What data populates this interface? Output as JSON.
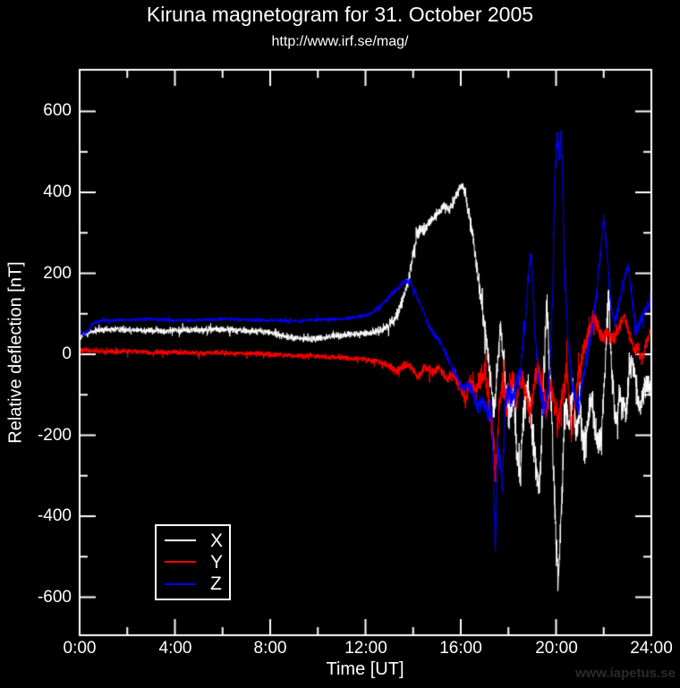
{
  "page": {
    "title": "Kiruna magnetogram for 31. October 2005",
    "subtitle": "http://www.irf.se/mag/",
    "watermark": "www.iapetus.se"
  },
  "chart_data": {
    "type": "line",
    "title": "Kiruna magnetogram for 31. October 2005",
    "subtitle": "http://www.irf.se/mag/",
    "xlabel": "Time [UT]",
    "ylabel": "Relative deflection [nT]",
    "xlim": [
      0,
      24
    ],
    "ylim": [
      -694,
      702
    ],
    "background": "#000000",
    "axis_color": "#ffffff",
    "grid": false,
    "x_ticks_major_hours": [
      0,
      4,
      8,
      12,
      16,
      20,
      24
    ],
    "x_tick_labels": [
      "0:00",
      "4:00",
      "8:00",
      "12:00",
      "16:00",
      "20:00",
      "24:00"
    ],
    "x_ticks_minor_hours": [
      2,
      6,
      10,
      14,
      18,
      22
    ],
    "y_ticks_major": [
      600,
      400,
      200,
      0,
      -200,
      -400,
      -600
    ],
    "y_tick_labels": [
      "600",
      "400",
      "200",
      "0",
      "-200",
      "-400",
      "-600"
    ],
    "y_ticks_minor": [
      500,
      300,
      100,
      -100,
      -300,
      -500
    ],
    "legend": {
      "position": "inside-bottom-left",
      "entries": [
        {
          "label": "X",
          "color": "#ffffff"
        },
        {
          "label": "Y",
          "color": "#ff0000"
        },
        {
          "label": "Z",
          "color": "#0000ff"
        }
      ]
    },
    "series": [
      {
        "name": "X",
        "color": "#ffffff",
        "unit": "nT",
        "keypoints": [
          [
            0,
            38
          ],
          [
            0.2,
            50
          ],
          [
            0.7,
            58
          ],
          [
            1.5,
            62
          ],
          [
            2.5,
            60
          ],
          [
            3.5,
            58
          ],
          [
            4.5,
            60
          ],
          [
            5.5,
            62
          ],
          [
            6.5,
            60
          ],
          [
            7.5,
            57
          ],
          [
            8,
            54
          ],
          [
            8.5,
            46
          ],
          [
            9,
            40
          ],
          [
            9.5,
            38
          ],
          [
            10,
            40
          ],
          [
            10.5,
            44
          ],
          [
            11,
            47
          ],
          [
            11.5,
            49
          ],
          [
            12,
            52
          ],
          [
            12.5,
            56
          ],
          [
            13,
            72
          ],
          [
            13.3,
            95
          ],
          [
            13.6,
            140
          ],
          [
            13.8,
            185
          ],
          [
            14,
            245
          ],
          [
            14.15,
            295
          ],
          [
            14.3,
            310
          ],
          [
            14.5,
            305
          ],
          [
            14.7,
            325
          ],
          [
            14.9,
            340
          ],
          [
            15.1,
            350
          ],
          [
            15.3,
            370
          ],
          [
            15.5,
            355
          ],
          [
            15.7,
            375
          ],
          [
            15.9,
            405
          ],
          [
            16.05,
            420
          ],
          [
            16.2,
            395
          ],
          [
            16.35,
            340
          ],
          [
            16.5,
            290
          ],
          [
            16.7,
            200
          ],
          [
            16.9,
            110
          ],
          [
            17.1,
            30
          ],
          [
            17.25,
            -60
          ],
          [
            17.4,
            -145
          ],
          [
            17.55,
            -30
          ],
          [
            17.65,
            65
          ],
          [
            17.75,
            20
          ],
          [
            17.9,
            -90
          ],
          [
            18.05,
            -160
          ],
          [
            18.2,
            -90
          ],
          [
            18.35,
            -230
          ],
          [
            18.5,
            -280
          ],
          [
            18.65,
            -140
          ],
          [
            18.8,
            -80
          ],
          [
            19,
            -190
          ],
          [
            19.15,
            -280
          ],
          [
            19.3,
            -330
          ],
          [
            19.45,
            -120
          ],
          [
            19.6,
            130
          ],
          [
            19.75,
            -40
          ],
          [
            19.9,
            -300
          ],
          [
            20,
            -460
          ],
          [
            20.1,
            -575
          ],
          [
            20.25,
            -350
          ],
          [
            20.4,
            -120
          ],
          [
            20.55,
            -180
          ],
          [
            20.7,
            -80
          ],
          [
            20.85,
            -200
          ],
          [
            21,
            -120
          ],
          [
            21.15,
            -240
          ],
          [
            21.3,
            -200
          ],
          [
            21.45,
            -100
          ],
          [
            21.6,
            -160
          ],
          [
            21.75,
            -220
          ],
          [
            21.9,
            -215
          ],
          [
            22.05,
            -40
          ],
          [
            22.2,
            150
          ],
          [
            22.35,
            -60
          ],
          [
            22.5,
            -170
          ],
          [
            22.65,
            -110
          ],
          [
            22.8,
            -125
          ],
          [
            22.95,
            -130
          ],
          [
            23.1,
            -30
          ],
          [
            23.2,
            -10
          ],
          [
            23.35,
            -60
          ],
          [
            23.5,
            -140
          ],
          [
            23.65,
            -95
          ],
          [
            23.8,
            -70
          ],
          [
            24,
            -95
          ]
        ],
        "noise_amp": [
          [
            0,
            9
          ],
          [
            8,
            9
          ],
          [
            12,
            9
          ],
          [
            13,
            13
          ],
          [
            14,
            16
          ],
          [
            15,
            14
          ],
          [
            16,
            14
          ],
          [
            17,
            30
          ],
          [
            18,
            45
          ],
          [
            19,
            45
          ],
          [
            20,
            50
          ],
          [
            21,
            45
          ],
          [
            22,
            40
          ],
          [
            23,
            35
          ],
          [
            24,
            30
          ]
        ]
      },
      {
        "name": "Y",
        "color": "#ff0000",
        "unit": "nT",
        "keypoints": [
          [
            0,
            12
          ],
          [
            0.5,
            8
          ],
          [
            1,
            6
          ],
          [
            2,
            8
          ],
          [
            3,
            4
          ],
          [
            4,
            5
          ],
          [
            5,
            2
          ],
          [
            6,
            4
          ],
          [
            7,
            2
          ],
          [
            8,
            0
          ],
          [
            9,
            -4
          ],
          [
            10,
            -5
          ],
          [
            11,
            -8
          ],
          [
            12,
            -12
          ],
          [
            12.5,
            -18
          ],
          [
            13,
            -28
          ],
          [
            13.3,
            -42
          ],
          [
            13.6,
            -28
          ],
          [
            13.9,
            -32
          ],
          [
            14.2,
            -55
          ],
          [
            14.5,
            -30
          ],
          [
            14.8,
            -45
          ],
          [
            15.1,
            -35
          ],
          [
            15.4,
            -60
          ],
          [
            15.7,
            -45
          ],
          [
            16,
            -85
          ],
          [
            16.2,
            -115
          ],
          [
            16.4,
            -60
          ],
          [
            16.6,
            -90
          ],
          [
            16.8,
            -60
          ],
          [
            17,
            -45
          ],
          [
            17.2,
            -130
          ],
          [
            17.35,
            -200
          ],
          [
            17.45,
            -310
          ],
          [
            17.6,
            -140
          ],
          [
            17.75,
            -70
          ],
          [
            17.9,
            -130
          ],
          [
            18.05,
            -80
          ],
          [
            18.2,
            -60
          ],
          [
            18.35,
            -120
          ],
          [
            18.5,
            -50
          ],
          [
            18.7,
            -90
          ],
          [
            18.9,
            -150
          ],
          [
            19.05,
            -90
          ],
          [
            19.2,
            -30
          ],
          [
            19.4,
            -80
          ],
          [
            19.6,
            -140
          ],
          [
            19.75,
            -70
          ],
          [
            19.9,
            -110
          ],
          [
            20.1,
            -170
          ],
          [
            20.3,
            -90
          ],
          [
            20.45,
            -40
          ],
          [
            20.65,
            -195
          ],
          [
            20.8,
            -110
          ],
          [
            21,
            -30
          ],
          [
            21.2,
            20
          ],
          [
            21.4,
            60
          ],
          [
            21.6,
            95
          ],
          [
            21.8,
            60
          ],
          [
            22,
            40
          ],
          [
            22.2,
            55
          ],
          [
            22.4,
            35
          ],
          [
            22.6,
            60
          ],
          [
            22.85,
            95
          ],
          [
            23.05,
            50
          ],
          [
            23.25,
            15
          ],
          [
            23.45,
            10
          ],
          [
            23.6,
            -15
          ],
          [
            23.8,
            30
          ],
          [
            24,
            58
          ]
        ],
        "noise_amp": [
          [
            0,
            7
          ],
          [
            12,
            7
          ],
          [
            13,
            11
          ],
          [
            15,
            13
          ],
          [
            16,
            18
          ],
          [
            17,
            35
          ],
          [
            18,
            35
          ],
          [
            19,
            30
          ],
          [
            20,
            38
          ],
          [
            21,
            25
          ],
          [
            22,
            20
          ],
          [
            23,
            18
          ],
          [
            24,
            15
          ]
        ]
      },
      {
        "name": "Z",
        "color": "#0000ff",
        "unit": "nT",
        "keypoints": [
          [
            0,
            62
          ],
          [
            0.15,
            48
          ],
          [
            0.35,
            58
          ],
          [
            0.6,
            78
          ],
          [
            1,
            84
          ],
          [
            2,
            85
          ],
          [
            3,
            87
          ],
          [
            4,
            84
          ],
          [
            5,
            85
          ],
          [
            6,
            87
          ],
          [
            7,
            85
          ],
          [
            8,
            84
          ],
          [
            9,
            82
          ],
          [
            10,
            85
          ],
          [
            11,
            88
          ],
          [
            11.7,
            92
          ],
          [
            12.2,
            100
          ],
          [
            12.6,
            118
          ],
          [
            13,
            142
          ],
          [
            13.4,
            165
          ],
          [
            13.7,
            182
          ],
          [
            13.9,
            178
          ],
          [
            14.1,
            150
          ],
          [
            14.4,
            110
          ],
          [
            14.7,
            65
          ],
          [
            15,
            42
          ],
          [
            15.3,
            12
          ],
          [
            15.6,
            -28
          ],
          [
            15.9,
            -65
          ],
          [
            16.1,
            -88
          ],
          [
            16.3,
            -72
          ],
          [
            16.5,
            -95
          ],
          [
            16.7,
            -125
          ],
          [
            16.9,
            -115
          ],
          [
            17.1,
            -135
          ],
          [
            17.3,
            -160
          ],
          [
            17.45,
            -490
          ],
          [
            17.55,
            -230
          ],
          [
            17.65,
            -270
          ],
          [
            17.75,
            -340
          ],
          [
            17.85,
            -130
          ],
          [
            18,
            -85
          ],
          [
            18.15,
            -115
          ],
          [
            18.3,
            -75
          ],
          [
            18.5,
            -45
          ],
          [
            18.7,
            80
          ],
          [
            18.85,
            200
          ],
          [
            18.95,
            250
          ],
          [
            19.1,
            70
          ],
          [
            19.25,
            -60
          ],
          [
            19.4,
            -110
          ],
          [
            19.55,
            -135
          ],
          [
            19.7,
            -75
          ],
          [
            19.85,
            120
          ],
          [
            19.95,
            450
          ],
          [
            20.05,
            538
          ],
          [
            20.15,
            480
          ],
          [
            20.22,
            560
          ],
          [
            20.35,
            220
          ],
          [
            20.5,
            40
          ],
          [
            20.65,
            -60
          ],
          [
            20.8,
            -110
          ],
          [
            20.95,
            -135
          ],
          [
            21.1,
            -70
          ],
          [
            21.25,
            -20
          ],
          [
            21.4,
            30
          ],
          [
            21.55,
            80
          ],
          [
            21.7,
            150
          ],
          [
            21.85,
            240
          ],
          [
            22,
            345
          ],
          [
            22.15,
            240
          ],
          [
            22.3,
            125
          ],
          [
            22.45,
            80
          ],
          [
            22.6,
            110
          ],
          [
            22.75,
            160
          ],
          [
            22.9,
            195
          ],
          [
            23.05,
            218
          ],
          [
            23.2,
            130
          ],
          [
            23.35,
            60
          ],
          [
            23.5,
            75
          ],
          [
            23.65,
            100
          ],
          [
            23.8,
            115
          ],
          [
            24,
            130
          ]
        ],
        "noise_amp": [
          [
            0,
            5
          ],
          [
            12,
            5
          ],
          [
            13,
            8
          ],
          [
            15,
            9
          ],
          [
            16,
            11
          ],
          [
            17,
            25
          ],
          [
            18,
            28
          ],
          [
            19,
            28
          ],
          [
            20,
            32
          ],
          [
            21,
            22
          ],
          [
            22,
            18
          ],
          [
            23,
            15
          ],
          [
            24,
            14
          ]
        ]
      }
    ]
  }
}
